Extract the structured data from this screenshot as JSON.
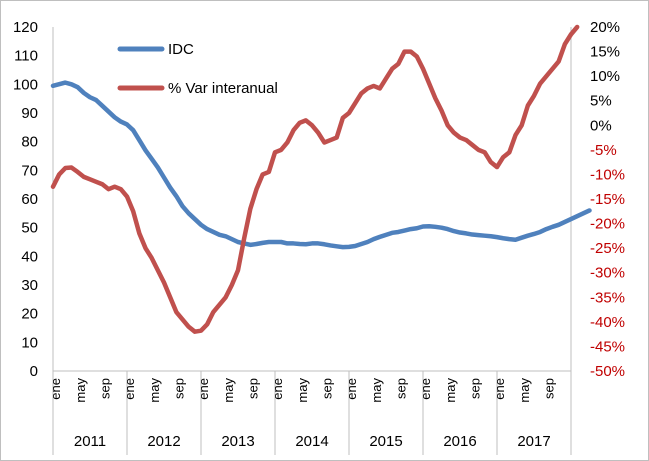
{
  "chart_data": {
    "type": "line",
    "title": "",
    "xlabel": "",
    "ylabel": "",
    "y_left": {
      "min": 0,
      "max": 120,
      "step": 10,
      "ticks": [
        "0",
        "10",
        "20",
        "30",
        "40",
        "50",
        "60",
        "70",
        "80",
        "90",
        "100",
        "110",
        "120"
      ]
    },
    "y_right": {
      "min": -50,
      "max": 20,
      "step": 5,
      "ticks": [
        "-50%",
        "-45%",
        "-40%",
        "-35%",
        "-30%",
        "-25%",
        "-20%",
        "-15%",
        "-10%",
        "-5%",
        "0%",
        "5%",
        "10%",
        "15%",
        "20%"
      ],
      "negative_color": "#C00000",
      "positive_color": "#000000"
    },
    "x_axis": {
      "years": [
        "2011",
        "2012",
        "2013",
        "2014",
        "2015",
        "2016",
        "2017"
      ],
      "month_labels": [
        "ene",
        "may",
        "sep"
      ]
    },
    "legend": {
      "position": "top-left",
      "entries": [
        {
          "label": "IDC",
          "color": "#4F81BD"
        },
        {
          "label": "% Var interanual",
          "color": "#C0504D"
        }
      ]
    },
    "series": [
      {
        "name": "IDC",
        "axis": "left",
        "color": "#4F81BD",
        "points": [
          [
            0,
            99.5
          ],
          [
            2,
            100.6
          ],
          [
            3,
            100
          ],
          [
            4,
            99
          ],
          [
            5,
            97
          ],
          [
            6,
            95.5
          ],
          [
            7,
            94.5
          ],
          [
            8,
            92.5
          ],
          [
            9,
            90.5
          ],
          [
            10,
            88.5
          ],
          [
            11,
            87
          ],
          [
            12,
            86
          ],
          [
            13,
            84
          ],
          [
            14,
            80.5
          ],
          [
            15,
            77
          ],
          [
            16,
            74
          ],
          [
            17,
            71
          ],
          [
            18,
            67.5
          ],
          [
            19,
            64
          ],
          [
            20,
            61
          ],
          [
            21,
            57.5
          ],
          [
            22,
            55
          ],
          [
            23,
            53
          ],
          [
            24,
            51
          ],
          [
            25,
            49.5
          ],
          [
            26,
            48.5
          ],
          [
            27,
            47.5
          ],
          [
            28,
            47
          ],
          [
            29,
            46
          ],
          [
            30,
            45
          ],
          [
            31,
            44.5
          ],
          [
            32,
            44
          ],
          [
            33,
            44.3
          ],
          [
            34,
            44.7
          ],
          [
            35,
            45
          ],
          [
            36,
            45
          ],
          [
            37,
            45
          ],
          [
            38,
            44.5
          ],
          [
            39,
            44.5
          ],
          [
            40,
            44.3
          ],
          [
            41,
            44.2
          ],
          [
            42,
            44.5
          ],
          [
            43,
            44.5
          ],
          [
            44,
            44.2
          ],
          [
            45,
            43.8
          ],
          [
            46,
            43.5
          ],
          [
            47,
            43.2
          ],
          [
            48,
            43.3
          ],
          [
            49,
            43.6
          ],
          [
            50,
            44.3
          ],
          [
            51,
            45
          ],
          [
            52,
            46
          ],
          [
            53,
            46.8
          ],
          [
            54,
            47.5
          ],
          [
            55,
            48.2
          ],
          [
            56,
            48.5
          ],
          [
            57,
            49
          ],
          [
            58,
            49.5
          ],
          [
            59,
            49.8
          ],
          [
            60,
            50.4
          ],
          [
            61,
            50.5
          ],
          [
            62,
            50.3
          ],
          [
            63,
            50
          ],
          [
            64,
            49.5
          ],
          [
            65,
            48.8
          ],
          [
            66,
            48.3
          ],
          [
            67,
            48
          ],
          [
            68,
            47.6
          ],
          [
            69,
            47.4
          ],
          [
            70,
            47.2
          ],
          [
            71,
            47
          ],
          [
            72,
            46.7
          ],
          [
            73,
            46.3
          ],
          [
            74,
            46
          ],
          [
            75,
            45.8
          ],
          [
            76,
            46.5
          ],
          [
            77,
            47.2
          ],
          [
            78,
            47.8
          ],
          [
            79,
            48.5
          ],
          [
            80,
            49.5
          ],
          [
            81,
            50.3
          ],
          [
            82,
            51
          ],
          [
            83,
            52
          ],
          [
            84,
            53
          ],
          [
            85,
            54
          ],
          [
            86,
            55
          ],
          [
            87,
            56
          ]
        ]
      },
      {
        "name": "% Var interanual",
        "axis": "right",
        "color": "#C0504D",
        "points": [
          [
            0,
            -12.5
          ],
          [
            1,
            -10
          ],
          [
            2,
            -8.7
          ],
          [
            3,
            -8.6
          ],
          [
            4,
            -9.5
          ],
          [
            5,
            -10.5
          ],
          [
            6,
            -11
          ],
          [
            7,
            -11.5
          ],
          [
            8,
            -12
          ],
          [
            9,
            -13
          ],
          [
            10,
            -12.5
          ],
          [
            11,
            -13
          ],
          [
            12,
            -14.5
          ],
          [
            13,
            -17.5
          ],
          [
            14,
            -22
          ],
          [
            15,
            -25
          ],
          [
            16,
            -27
          ],
          [
            17,
            -29.5
          ],
          [
            18,
            -32
          ],
          [
            19,
            -35
          ],
          [
            20,
            -38
          ],
          [
            21,
            -39.5
          ],
          [
            22,
            -41
          ],
          [
            23,
            -42
          ],
          [
            24,
            -41.8
          ],
          [
            25,
            -40.5
          ],
          [
            26,
            -38
          ],
          [
            27,
            -36.5
          ],
          [
            28,
            -35
          ],
          [
            29,
            -32.5
          ],
          [
            30,
            -29.5
          ],
          [
            31,
            -23
          ],
          [
            32,
            -17
          ],
          [
            33,
            -13
          ],
          [
            34,
            -10
          ],
          [
            35,
            -9.5
          ],
          [
            36,
            -5.5
          ],
          [
            37,
            -5
          ],
          [
            38,
            -3.5
          ],
          [
            39,
            -1
          ],
          [
            40,
            0.5
          ],
          [
            41,
            1
          ],
          [
            42,
            0
          ],
          [
            43,
            -1.5
          ],
          [
            44,
            -3.5
          ],
          [
            45,
            -3
          ],
          [
            46,
            -2.5
          ],
          [
            47,
            1.5
          ],
          [
            48,
            2.5
          ],
          [
            49,
            4.5
          ],
          [
            50,
            6.5
          ],
          [
            51,
            7.5
          ],
          [
            52,
            8
          ],
          [
            53,
            7.5
          ],
          [
            54,
            9.5
          ],
          [
            55,
            11.5
          ],
          [
            56,
            12.5
          ],
          [
            57,
            15
          ],
          [
            58,
            15
          ],
          [
            59,
            14
          ],
          [
            60,
            11.5
          ],
          [
            61,
            8.5
          ],
          [
            62,
            5.5
          ],
          [
            63,
            3
          ],
          [
            64,
            0
          ],
          [
            65,
            -1.5
          ],
          [
            66,
            -2.5
          ],
          [
            67,
            -3
          ],
          [
            68,
            -4
          ],
          [
            69,
            -5
          ],
          [
            70,
            -5.5
          ],
          [
            71,
            -7.5
          ],
          [
            72,
            -8.5
          ],
          [
            73,
            -6.5
          ],
          [
            74,
            -5.5
          ],
          [
            75,
            -2
          ],
          [
            76,
            0
          ],
          [
            77,
            4
          ],
          [
            78,
            6
          ],
          [
            79,
            8.5
          ],
          [
            80,
            10
          ],
          [
            81,
            11.5
          ],
          [
            82,
            13
          ],
          [
            83,
            16.5
          ],
          [
            84,
            18.5
          ],
          [
            85,
            20
          ]
        ]
      }
    ]
  }
}
